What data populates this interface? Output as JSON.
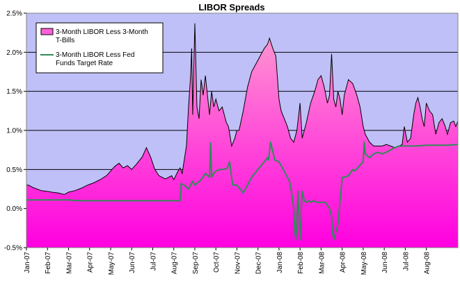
{
  "chart_data": {
    "type": "area",
    "title": "LIBOR Spreads",
    "xlabel": "",
    "ylabel": "",
    "ylim": [
      -0.5,
      2.5
    ],
    "yticks": [
      "-0.5%",
      "0.0%",
      "0.5%",
      "1.0%",
      "1.5%",
      "2.0%",
      "2.5%"
    ],
    "ytick_values": [
      -0.5,
      0.0,
      0.5,
      1.0,
      1.5,
      2.0,
      2.5
    ],
    "x_unit": "month index (0 = Jan-07)",
    "xlim": [
      0,
      20.5
    ],
    "xticks": [
      "Jan-07",
      "Feb-07",
      "Mar-07",
      "Apr-07",
      "May-07",
      "Jun-07",
      "Jul-07",
      "Aug-07",
      "Sep-07",
      "Oct-07",
      "Nov-07",
      "Dec-07",
      "Jan-08",
      "Feb-08",
      "Mar-08",
      "Apr-08",
      "May-08",
      "Jun-08",
      "Jul-08",
      "Aug-08"
    ],
    "grid": "horizontal",
    "legend_position": "top-left",
    "colors": {
      "plot_bg": "#c0c0f8",
      "area_top": "#ff9ed0",
      "area_bottom": "#ff00e0",
      "outline": "#000000",
      "line": "#2e8b57"
    },
    "series": [
      {
        "name": "3-Month LIBOR Less 3-Month T-Bills",
        "kind": "area",
        "x": [
          0,
          0.1,
          0.3,
          0.5,
          0.7,
          1.0,
          1.2,
          1.5,
          1.8,
          2.0,
          2.3,
          2.6,
          2.9,
          3.2,
          3.5,
          3.8,
          4.0,
          4.2,
          4.4,
          4.6,
          4.8,
          5.0,
          5.2,
          5.5,
          5.7,
          5.9,
          6.1,
          6.3,
          6.6,
          6.9,
          7.0,
          7.2,
          7.3,
          7.4,
          7.45,
          7.6,
          7.7,
          7.8,
          7.85,
          7.9,
          8.0,
          8.1,
          8.2,
          8.3,
          8.4,
          8.5,
          8.6,
          8.7,
          8.8,
          8.9,
          9.0,
          9.15,
          9.3,
          9.5,
          9.6,
          9.75,
          9.9,
          10.0,
          10.1,
          10.3,
          10.5,
          10.7,
          10.9,
          11.1,
          11.3,
          11.45,
          11.55,
          11.7,
          11.85,
          12.0,
          12.1,
          12.25,
          12.4,
          12.55,
          12.7,
          12.85,
          13.0,
          13.1,
          13.3,
          13.5,
          13.7,
          13.85,
          14.0,
          14.15,
          14.3,
          14.4,
          14.5,
          14.6,
          14.7,
          14.8,
          14.9,
          15.0,
          15.1,
          15.3,
          15.5,
          15.7,
          15.85,
          16.0,
          16.1,
          16.3,
          16.5,
          16.7,
          16.9,
          17.1,
          17.3,
          17.5,
          17.7,
          17.85,
          17.95,
          18.1,
          18.25,
          18.4,
          18.5,
          18.6,
          18.7,
          18.8,
          18.9,
          19.0,
          19.15,
          19.3,
          19.45,
          19.6,
          19.75,
          19.9,
          20.0,
          20.15,
          20.3,
          20.4,
          20.5
        ],
        "values": [
          0.3,
          0.3,
          0.27,
          0.25,
          0.23,
          0.22,
          0.21,
          0.2,
          0.18,
          0.21,
          0.23,
          0.26,
          0.3,
          0.33,
          0.37,
          0.42,
          0.48,
          0.54,
          0.58,
          0.52,
          0.55,
          0.5,
          0.56,
          0.66,
          0.78,
          0.66,
          0.5,
          0.42,
          0.38,
          0.42,
          0.37,
          0.48,
          0.52,
          0.45,
          0.54,
          0.8,
          1.3,
          1.7,
          2.05,
          1.2,
          2.37,
          1.3,
          1.15,
          1.65,
          1.45,
          1.7,
          1.45,
          1.2,
          1.5,
          1.3,
          1.4,
          1.25,
          1.3,
          1.1,
          1.05,
          0.8,
          0.9,
          1.0,
          1.0,
          1.25,
          1.55,
          1.75,
          1.85,
          1.95,
          2.05,
          2.1,
          2.18,
          2.05,
          1.95,
          1.4,
          1.25,
          1.15,
          1.05,
          0.9,
          0.85,
          1.0,
          1.35,
          0.9,
          1.1,
          1.35,
          1.5,
          1.65,
          1.7,
          1.55,
          1.35,
          1.45,
          1.98,
          1.4,
          1.3,
          1.5,
          1.4,
          1.2,
          1.45,
          1.65,
          1.6,
          1.45,
          1.3,
          1.05,
          0.95,
          0.85,
          0.8,
          0.8,
          0.8,
          0.82,
          0.8,
          0.78,
          0.8,
          0.82,
          1.05,
          0.85,
          0.9,
          1.2,
          1.35,
          1.42,
          1.3,
          1.15,
          1.05,
          1.35,
          1.25,
          1.2,
          0.95,
          1.1,
          1.15,
          1.05,
          0.95,
          1.1,
          1.12,
          1.05,
          1.12
        ]
      },
      {
        "name": "3-Month LIBOR Less Fed Funds Target Rate",
        "kind": "line",
        "x": [
          0,
          1,
          1.5,
          2,
          2.5,
          3,
          4,
          5,
          6,
          7,
          7.2,
          7.3,
          7.35,
          7.5,
          7.7,
          7.9,
          8,
          8.3,
          8.5,
          8.7,
          8.75,
          8.8,
          8.9,
          9,
          9.2,
          9.4,
          9.55,
          9.65,
          9.8,
          10,
          10.3,
          10.5,
          10.7,
          11,
          11.3,
          11.45,
          11.5,
          11.6,
          11.8,
          12,
          12.2,
          12.4,
          12.5,
          12.6,
          12.7,
          12.75,
          12.8,
          12.85,
          12.9,
          13.0,
          13.1,
          13.2,
          13.3,
          13.4,
          13.5,
          13.6,
          13.8,
          14.0,
          14.2,
          14.4,
          14.5,
          14.55,
          14.6,
          14.8,
          15.0,
          15.1,
          15.3,
          15.5,
          15.6,
          16.0,
          16.05,
          16.1,
          16.3,
          16.5,
          16.7,
          16.9,
          17.1,
          17.3,
          17.5,
          17.7,
          18.0,
          18.5,
          19,
          19.5,
          20,
          20.5
        ],
        "values": [
          0.11,
          0.11,
          0.11,
          0.11,
          0.1,
          0.1,
          0.1,
          0.1,
          0.1,
          0.1,
          0.1,
          0.1,
          0.32,
          0.3,
          0.25,
          0.35,
          0.3,
          0.37,
          0.45,
          0.4,
          0.84,
          0.4,
          0.45,
          0.48,
          0.5,
          0.5,
          0.52,
          0.6,
          0.3,
          0.3,
          0.2,
          0.3,
          0.4,
          0.5,
          0.6,
          0.65,
          0.62,
          0.85,
          0.62,
          0.6,
          0.5,
          0.4,
          0.35,
          0.2,
          0.0,
          -0.3,
          -0.4,
          -0.2,
          0.22,
          -0.4,
          0.22,
          0.1,
          0.08,
          0.1,
          0.08,
          0.1,
          0.08,
          0.08,
          0.08,
          0.0,
          -0.1,
          -0.3,
          -0.4,
          -0.2,
          0.4,
          0.4,
          0.42,
          0.5,
          0.48,
          0.6,
          0.85,
          0.7,
          0.65,
          0.7,
          0.72,
          0.7,
          0.72,
          0.75,
          0.78,
          0.8,
          0.8,
          0.8,
          0.81,
          0.81,
          0.81,
          0.82
        ]
      }
    ]
  }
}
